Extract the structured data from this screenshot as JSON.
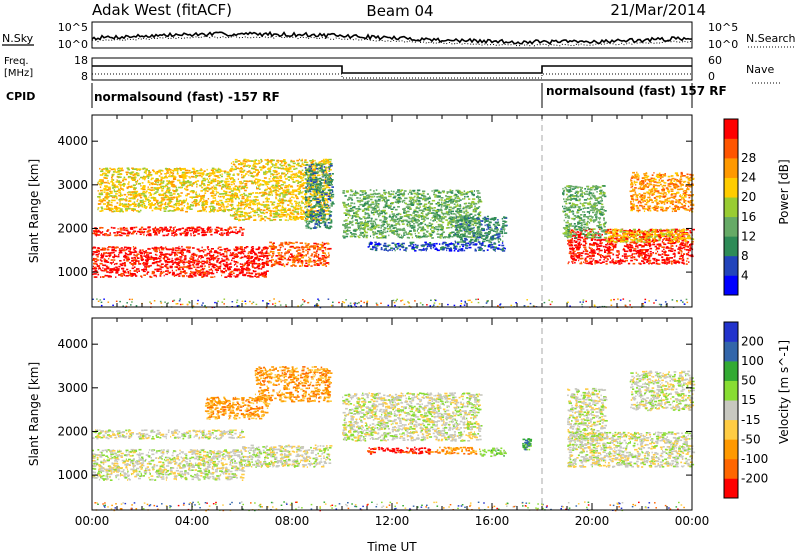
{
  "header": {
    "station": "Adak West (fitACF)",
    "beam": "Beam 04",
    "date": "21/Mar/2014"
  },
  "noise_panel": {
    "left_label": "N.Sky",
    "right_label": "N.Search",
    "left_ticks": [
      "10^5",
      "10^0"
    ],
    "right_ticks": [
      "10^5",
      "10^0"
    ]
  },
  "freq_panel": {
    "left_label_line1": "Freq.",
    "left_label_line2": "[MHz]",
    "right_label": "Nave",
    "left_ticks": [
      "18",
      "8"
    ],
    "right_ticks": [
      "60",
      "0"
    ]
  },
  "cpid_panel": {
    "label": "CPID",
    "segments": [
      {
        "start_hour": 0,
        "end_hour": 18,
        "text": "normalsound (fast) -157 RF"
      },
      {
        "start_hour": 18,
        "end_hour": 24,
        "text": "normalsound (fast) 157 RF"
      }
    ]
  },
  "colors": {
    "power": [
      "#0000ff",
      "#2244bb",
      "#2e8b57",
      "#66aa66",
      "#99cc33",
      "#ffcc00",
      "#ff9900",
      "#ff5500",
      "#ff0000"
    ],
    "velocity": [
      "#ff0000",
      "#ff6600",
      "#ff9900",
      "#ffcc44",
      "#c8c8c0",
      "#88dd33",
      "#33aa33",
      "#3366aa",
      "#2233cc"
    ]
  },
  "chart_data": [
    {
      "type": "heatmap",
      "name": "power",
      "ylabel": "Slant Range [km]",
      "xlim": [
        0,
        24
      ],
      "ylim": [
        200,
        4600
      ],
      "yticks": [
        "1000",
        "2000",
        "3000",
        "4000"
      ],
      "colorbar_label": "Power [dB]",
      "colorbar_ticks": [
        "4",
        "8",
        "12",
        "16",
        "20",
        "24",
        "28"
      ],
      "regions": [
        {
          "x0": 0,
          "x1": 7,
          "y0": 900,
          "y1": 1600,
          "level": 8
        },
        {
          "x0": 7,
          "x1": 9.5,
          "y0": 1150,
          "y1": 1700,
          "level": 7
        },
        {
          "x0": 0,
          "x1": 6,
          "y0": 1850,
          "y1": 2050,
          "level": 8
        },
        {
          "x0": 0.2,
          "x1": 5.5,
          "y0": 2400,
          "y1": 3400,
          "level": 5
        },
        {
          "x0": 5.5,
          "x1": 9.5,
          "y0": 2200,
          "y1": 3600,
          "level": 5
        },
        {
          "x0": 8.5,
          "x1": 9.6,
          "y0": 2000,
          "y1": 3500,
          "level": 2
        },
        {
          "x0": 10,
          "x1": 15.5,
          "y0": 1800,
          "y1": 2900,
          "level": 3
        },
        {
          "x0": 11,
          "x1": 16.5,
          "y0": 1500,
          "y1": 1700,
          "level": 1
        },
        {
          "x0": 14.5,
          "x1": 16.5,
          "y0": 1700,
          "y1": 2300,
          "level": 2
        },
        {
          "x0": 19,
          "x1": 24,
          "y0": 1200,
          "y1": 2000,
          "level": 8
        },
        {
          "x0": 18.8,
          "x1": 20.5,
          "y0": 1800,
          "y1": 3000,
          "level": 3
        },
        {
          "x0": 20.5,
          "x1": 24,
          "y0": 1700,
          "y1": 2000,
          "level": 5
        },
        {
          "x0": 21.5,
          "x1": 24,
          "y0": 2400,
          "y1": 3300,
          "level": 6
        }
      ]
    },
    {
      "type": "heatmap",
      "name": "velocity",
      "xlabel": "Time UT",
      "ylabel": "Slant Range [km]",
      "xlim": [
        0,
        24
      ],
      "ylim": [
        200,
        4600
      ],
      "xticks": [
        "00:00",
        "04:00",
        "08:00",
        "12:00",
        "16:00",
        "20:00",
        "00:00"
      ],
      "yticks": [
        "1000",
        "2000",
        "3000",
        "4000"
      ],
      "colorbar_label": "Velocity [m s^-1]",
      "colorbar_ticks": [
        "-200",
        "-100",
        "-50",
        "-15",
        "15",
        "50",
        "100",
        "200"
      ],
      "regions": [
        {
          "x0": 0,
          "x1": 6,
          "y0": 900,
          "y1": 1600,
          "level": 4
        },
        {
          "x0": 6,
          "x1": 9.5,
          "y0": 1200,
          "y1": 1700,
          "level": 4
        },
        {
          "x0": 0,
          "x1": 6,
          "y0": 1850,
          "y1": 2050,
          "level": 4
        },
        {
          "x0": 4.5,
          "x1": 7,
          "y0": 2300,
          "y1": 2800,
          "level": 2
        },
        {
          "x0": 6.5,
          "x1": 9.5,
          "y0": 2700,
          "y1": 3500,
          "level": 2
        },
        {
          "x0": 10,
          "x1": 15.5,
          "y0": 1800,
          "y1": 2900,
          "level": 4
        },
        {
          "x0": 11,
          "x1": 13.5,
          "y0": 1500,
          "y1": 1650,
          "level": 0
        },
        {
          "x0": 13.5,
          "x1": 15.5,
          "y0": 1500,
          "y1": 1650,
          "level": 2
        },
        {
          "x0": 15.5,
          "x1": 16.5,
          "y0": 1450,
          "y1": 1650,
          "level": 5
        },
        {
          "x0": 17.2,
          "x1": 17.5,
          "y0": 1600,
          "y1": 1850,
          "level": 6
        },
        {
          "x0": 19,
          "x1": 24,
          "y0": 1200,
          "y1": 2000,
          "level": 4
        },
        {
          "x0": 19,
          "x1": 20.5,
          "y0": 1800,
          "y1": 3000,
          "level": 4
        },
        {
          "x0": 21.5,
          "x1": 24,
          "y0": 2500,
          "y1": 3400,
          "level": 4
        }
      ]
    }
  ]
}
